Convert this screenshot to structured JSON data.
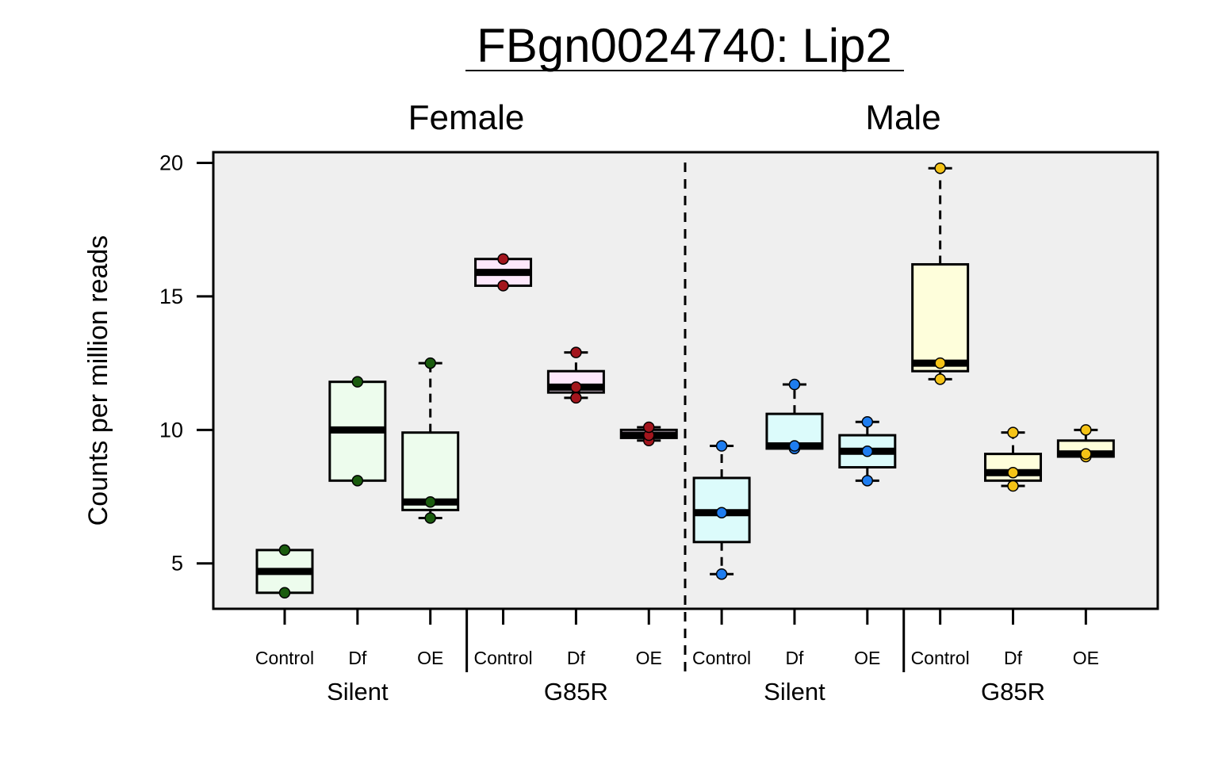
{
  "chart_data": {
    "type": "box",
    "title": "FBgn0024740: Lip2",
    "ylabel": "Counts per million reads",
    "ylim": [
      3.3,
      20.4
    ],
    "yticks": [
      5,
      10,
      15,
      20
    ],
    "grid": false,
    "panels": [
      {
        "name": "Female",
        "box_fill": "#edfced",
        "point_color": "#1a5c0e",
        "groups": [
          {
            "name": "Silent",
            "boxes": [
              {
                "label": "Control",
                "min": 3.9,
                "q1": 3.9,
                "median": 4.7,
                "q3": 5.5,
                "max": 5.5,
                "points": [
                  3.9,
                  5.5
                ]
              },
              {
                "label": "Df",
                "min": 8.1,
                "q1": 8.1,
                "median": 10.0,
                "q3": 11.8,
                "max": 11.8,
                "points": [
                  8.1,
                  11.8
                ]
              },
              {
                "label": "OE",
                "min": 6.7,
                "q1": 7.0,
                "median": 7.3,
                "q3": 9.9,
                "max": 12.5,
                "points": [
                  6.7,
                  7.3,
                  12.5
                ]
              }
            ]
          },
          {
            "name": "G85R",
            "box_fill": "#fde8fb",
            "point_color": "#a3151d",
            "boxes": [
              {
                "label": "Control",
                "min": 15.4,
                "q1": 15.4,
                "median": 15.9,
                "q3": 16.4,
                "max": 16.4,
                "points": [
                  15.4,
                  16.4
                ]
              },
              {
                "label": "Df",
                "min": 11.2,
                "q1": 11.4,
                "median": 11.6,
                "q3": 12.2,
                "max": 12.9,
                "points": [
                  11.2,
                  11.6,
                  12.9
                ]
              },
              {
                "label": "OE",
                "min": 9.6,
                "q1": 9.7,
                "median": 9.8,
                "q3": 10.0,
                "max": 10.1,
                "points": [
                  9.6,
                  9.8,
                  10.1
                ]
              }
            ]
          }
        ]
      },
      {
        "name": "Male",
        "groups": [
          {
            "name": "Silent",
            "box_fill": "#dcfbfb",
            "point_color": "#1e7df0",
            "boxes": [
              {
                "label": "Control",
                "min": 4.6,
                "q1": 5.8,
                "median": 6.9,
                "q3": 8.2,
                "max": 9.4,
                "points": [
                  4.6,
                  6.9,
                  9.4
                ]
              },
              {
                "label": "Df",
                "min": 9.3,
                "q1": 9.3,
                "median": 9.4,
                "q3": 10.6,
                "max": 11.7,
                "points": [
                  9.3,
                  9.4,
                  11.7
                ]
              },
              {
                "label": "OE",
                "min": 8.1,
                "q1": 8.6,
                "median": 9.2,
                "q3": 9.8,
                "max": 10.3,
                "points": [
                  8.1,
                  9.2,
                  10.3
                ]
              }
            ]
          },
          {
            "name": "G85R",
            "box_fill": "#fefedb",
            "point_color": "#f5c316",
            "boxes": [
              {
                "label": "Control",
                "min": 11.9,
                "q1": 12.2,
                "median": 12.5,
                "q3": 16.2,
                "max": 19.8,
                "points": [
                  11.9,
                  12.5,
                  19.8
                ]
              },
              {
                "label": "Df",
                "min": 7.9,
                "q1": 8.1,
                "median": 8.4,
                "q3": 9.1,
                "max": 9.9,
                "points": [
                  7.9,
                  8.4,
                  9.9
                ]
              },
              {
                "label": "OE",
                "min": 9.0,
                "q1": 9.0,
                "median": 9.1,
                "q3": 9.6,
                "max": 10.0,
                "points": [
                  9.0,
                  9.1,
                  10.0
                ]
              }
            ]
          }
        ]
      }
    ],
    "colors": {
      "female_silent_fill": "#edfced",
      "female_silent_point": "#1a5c0e",
      "female_g85r_fill": "#fde8fb",
      "female_g85r_point": "#a3151d",
      "male_silent_fill": "#dcfbfb",
      "male_silent_point": "#1e7df0",
      "male_g85r_fill": "#fefedb",
      "male_g85r_point": "#f5c316",
      "plot_background": "#efefef"
    }
  }
}
